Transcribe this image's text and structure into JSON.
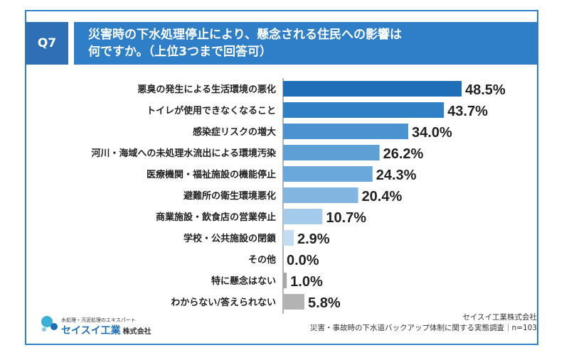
{
  "question": {
    "number": "Q7",
    "title_line1": "災害時の下水処理停止により、懸念される住民への影響は",
    "title_line2": "何ですか。（上位3つまで回答可）"
  },
  "chart_data": {
    "type": "bar",
    "orientation": "horizontal",
    "title": "災害時の下水処理停止により、懸念される住民への影響は何ですか。（上位3つまで回答可）",
    "categories": [
      "悪臭の発生による生活環境の悪化",
      "トイレが使用できなくなること",
      "感染症リスクの増大",
      "河川・海域への未処理水流出による環境汚染",
      "医療機関・福祉施設の機能停止",
      "避難所の衛生環境悪化",
      "商業施設・飲食店の営業停止",
      "学校・公共施設の閉鎖",
      "その他",
      "特に懸念はない",
      "わからない/答えられない"
    ],
    "values": [
      48.5,
      43.7,
      34.0,
      26.2,
      24.3,
      20.4,
      10.7,
      2.9,
      0.0,
      1.0,
      5.8
    ],
    "labels": [
      "48.5%",
      "43.7%",
      "34.0%",
      "26.2%",
      "24.3%",
      "20.4%",
      "10.7%",
      "2.9%",
      "0.0%",
      "1.0%",
      "5.8%"
    ],
    "unit": "%",
    "xlim": [
      0,
      55
    ],
    "colors": [
      "#1e6fb5",
      "#2f80c5",
      "#4a92d0",
      "#5e9fd6",
      "#6aa7da",
      "#82b6e0",
      "#a4cbeb",
      "#c2dcf1",
      "#e0e0e0",
      "#a9a9a9",
      "#b3b3b3"
    ]
  },
  "footer": {
    "company": "セイスイ工業株式会社",
    "survey": "災害・事故時の下水道バックアップ体制に関する実態調査｜n=103"
  },
  "logo": {
    "tagline": "水処理・汚泥処理のエキスパート",
    "name": "セイスイ工業",
    "suffix": "株式会社"
  }
}
